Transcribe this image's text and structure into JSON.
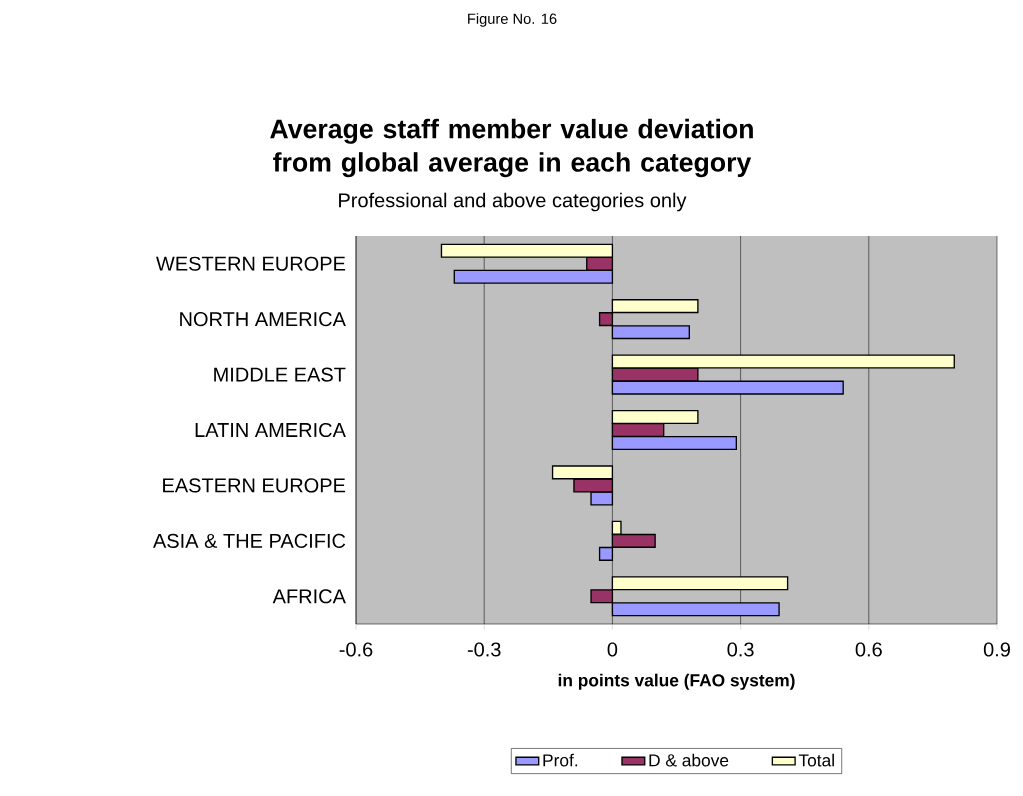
{
  "chart_data": {
    "type": "bar",
    "orientation": "horizontal",
    "title": "Average staff member value deviation from global average in each category",
    "subtitle": "Professional and above categories only",
    "annotations": [
      "Figure No. 16"
    ],
    "xlabel": "in points value (FAO system)",
    "categories": [
      "WESTERN EUROPE",
      "NORTH AMERICA",
      "MIDDLE EAST",
      "LATIN AMERICA",
      "EASTERN EUROPE",
      "ASIA & THE PACIFIC",
      "AFRICA"
    ],
    "series": [
      {
        "name": "Prof.",
        "color": "#9999ff",
        "values": [
          -0.37,
          0.18,
          0.54,
          0.29,
          -0.05,
          -0.03,
          0.39
        ]
      },
      {
        "name": "D & above",
        "color": "#993366",
        "values": [
          -0.06,
          -0.03,
          0.2,
          0.12,
          -0.09,
          0.1,
          -0.05
        ]
      },
      {
        "name": "Total",
        "color": "#ffffcc",
        "values": [
          -0.4,
          0.2,
          0.8,
          0.2,
          -0.14,
          0.02,
          0.41
        ]
      }
    ],
    "xlim": [
      -0.6,
      0.9
    ],
    "xticks": [
      -0.6,
      -0.3,
      0,
      0.3,
      0.6,
      0.9
    ],
    "grid": "x",
    "legend": "bottom"
  }
}
